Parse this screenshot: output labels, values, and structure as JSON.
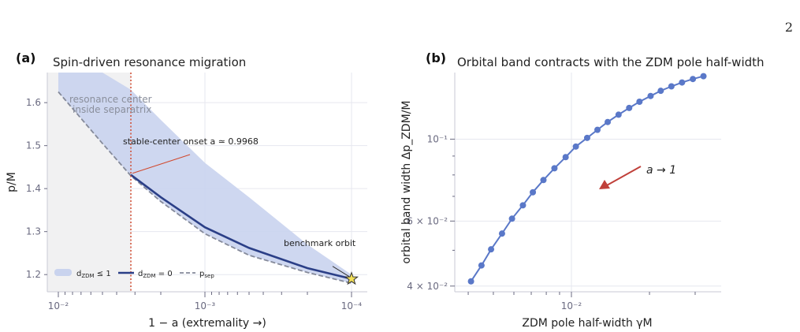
{
  "page_number": "2",
  "colors": {
    "band": "#c9d3ee",
    "line": "#2b3f87",
    "sep": "#858a9a",
    "marker": "#d1492e",
    "shade": "#f1f1f2",
    "points": "#5a78c8",
    "arrow": "#c0403a",
    "star": "#f2df58"
  },
  "chart_data": [
    {
      "id": "a",
      "panel_label": "(a)",
      "type": "line",
      "title": "Spin-driven resonance migration",
      "xlabel": "1 − a  (extremality →)",
      "ylabel": "p/M",
      "x_scale": "log",
      "x_reversed": true,
      "xlim": [
        0.01,
        0.0001
      ],
      "ylim": [
        1.16,
        1.67
      ],
      "xticks": [
        {
          "value": 0.01,
          "label": "10⁻²"
        },
        {
          "value": 0.001,
          "label": "10⁻³"
        },
        {
          "value": 0.0001,
          "label": "10⁻⁴"
        }
      ],
      "yticks": [
        1.2,
        1.3,
        1.4,
        1.5,
        1.6
      ],
      "grid": true,
      "series": [
        {
          "legend": "d_ZDM ≤ 1",
          "kind": "band",
          "x": [
            0.01,
            0.005,
            0.0032,
            0.002,
            0.001,
            0.0005,
            0.0002,
            0.0001
          ],
          "upper": [
            1.67,
            1.67,
            1.63,
            1.56,
            1.46,
            1.38,
            1.27,
            1.2
          ],
          "lower": [
            1.625,
            1.505,
            1.43,
            1.37,
            1.295,
            1.245,
            1.205,
            1.18
          ]
        },
        {
          "legend": "d_ZDM = 0",
          "kind": "solid",
          "x": [
            0.0032,
            0.002,
            0.001,
            0.0005,
            0.0002,
            0.0001
          ],
          "y": [
            1.432,
            1.38,
            1.31,
            1.262,
            1.215,
            1.19
          ]
        },
        {
          "legend": "p_sep",
          "kind": "dashed",
          "x": [
            0.01,
            0.005,
            0.0032,
            0.002,
            0.001,
            0.0005,
            0.0002,
            0.0001
          ],
          "y": [
            1.625,
            1.505,
            1.43,
            1.37,
            1.295,
            1.245,
            1.205,
            1.18
          ]
        }
      ],
      "onset_line_x": 0.0032,
      "benchmark": {
        "x": 0.0001,
        "y": 1.19
      },
      "legend_entries": [
        {
          "pre": "d",
          "sub": "ZDM",
          "post": " ≤ 1"
        },
        {
          "pre": "d",
          "sub": "ZDM",
          "post": " = 0"
        },
        {
          "pre": "p",
          "sub": "sep",
          "post": ""
        }
      ],
      "annotations": {
        "shade_line1": "resonance center",
        "shade_line2": "inside separatrix",
        "onset": "stable-center onset a ≃ 0.9968",
        "benchmark": "benchmark orbit"
      }
    },
    {
      "id": "b",
      "panel_label": "(b)",
      "type": "scatter",
      "title": "Orbital band contracts with the ZDM pole half-width",
      "xlabel": "ZDM pole half-width γM",
      "ylabel": "orbital band width Δp_ZDM/M",
      "x_scale": "log",
      "y_scale": "log",
      "xlim": [
        0.00355,
        0.0378
      ],
      "ylim": [
        0.0386,
        0.1515
      ],
      "yticks": [
        {
          "value": 0.04,
          "label": "4 × 10⁻²"
        },
        {
          "value": 0.06,
          "label": "6 × 10⁻²"
        },
        {
          "value": 0.1,
          "label": "10⁻¹"
        }
      ],
      "xticks": [
        {
          "value": 0.01,
          "label": "10⁻²"
        }
      ],
      "grid": true,
      "series": [
        {
          "x": [
            0.0041,
            0.0045,
            0.0049,
            0.0054,
            0.0059,
            0.0065,
            0.0071,
            0.0078,
            0.0086,
            0.0095,
            0.0104,
            0.0115,
            0.0126,
            0.0138,
            0.0152,
            0.0167,
            0.0183,
            0.0202,
            0.0221,
            0.0243,
            0.0267,
            0.0294,
            0.0323
          ],
          "y": [
            0.0412,
            0.0455,
            0.0503,
            0.0555,
            0.0609,
            0.0662,
            0.0718,
            0.0775,
            0.0834,
            0.0894,
            0.0955,
            0.1008,
            0.106,
            0.1113,
            0.1165,
            0.1215,
            0.1263,
            0.1309,
            0.1352,
            0.139,
            0.1424,
            0.1455,
            0.1481
          ]
        }
      ],
      "arrow_label": "a → 1"
    }
  ]
}
